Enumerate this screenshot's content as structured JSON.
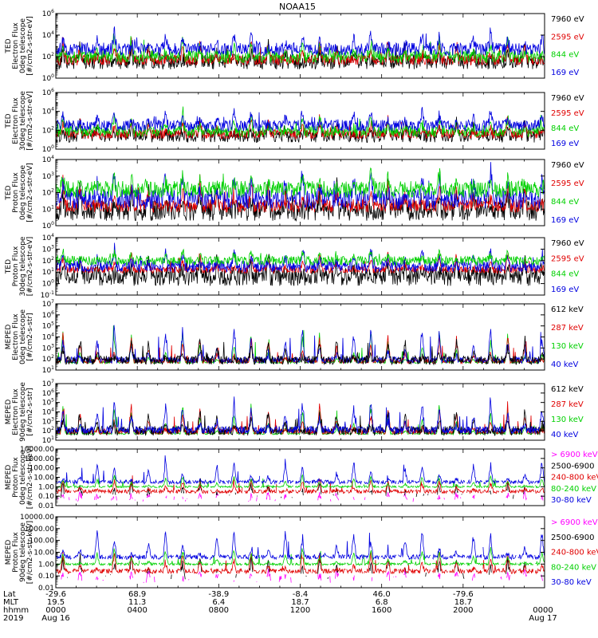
{
  "chart_data": {
    "type": "line",
    "title": "NOAA15",
    "x_range_hours": [
      0,
      24
    ],
    "x_axis_info": {
      "row_labels": [
        "Lat",
        "MLT",
        "hhmm",
        "2019"
      ],
      "ticks": [
        {
          "hour": 0,
          "lat": "-29.6",
          "mlt": "19.5",
          "hhmm": "0000",
          "date": "Aug 16"
        },
        {
          "hour": 4,
          "lat": "68.9",
          "mlt": "11.3",
          "hhmm": "0400",
          "date": ""
        },
        {
          "hour": 8,
          "lat": "-38.9",
          "mlt": "6.4",
          "hhmm": "0800",
          "date": ""
        },
        {
          "hour": 12,
          "lat": "-8.4",
          "mlt": "18.7",
          "hhmm": "1200",
          "date": ""
        },
        {
          "hour": 16,
          "lat": "46.0",
          "mlt": "6.8",
          "hhmm": "1600",
          "date": ""
        },
        {
          "hour": 20,
          "lat": "-79.6",
          "mlt": "18.7",
          "hhmm": "2000",
          "date": ""
        },
        {
          "hour": 24,
          "lat": "",
          "mlt": "",
          "hhmm": "0000",
          "date": "Aug 17"
        }
      ]
    },
    "panels": [
      {
        "ylabel": [
          "TED",
          "Electron Flux",
          "0deg telescope",
          "[#/cm2-s-str-eV]"
        ],
        "yscale": "log",
        "ylim_exp": [
          0,
          6
        ],
        "tick_exps": [
          0,
          2,
          4,
          6
        ],
        "tick_format": "pow",
        "series": [
          {
            "name": "7960 eV",
            "color": "#000000",
            "base_exp": 1.5,
            "noise": 0.7,
            "peak": 3.3,
            "gaps": false
          },
          {
            "name": "2595 eV",
            "color": "#e00000",
            "base_exp": 1.7,
            "noise": 0.5,
            "peak": 3.6,
            "gaps": false
          },
          {
            "name": "844 eV",
            "color": "#00d000",
            "base_exp": 2.0,
            "noise": 0.6,
            "peak": 3.8,
            "gaps": false
          },
          {
            "name": "169 eV",
            "color": "#0000e0",
            "base_exp": 2.7,
            "noise": 0.6,
            "peak": 4.6,
            "gaps": false
          }
        ]
      },
      {
        "ylabel": [
          "TED",
          "Electron Flux",
          "30deg telescope",
          "[#/cm2-s-str-eV]"
        ],
        "yscale": "log",
        "ylim_exp": [
          0,
          6
        ],
        "tick_exps": [
          0,
          2,
          4,
          6
        ],
        "tick_format": "pow",
        "series": [
          {
            "name": "7960 eV",
            "color": "#000000",
            "base_exp": 1.4,
            "noise": 0.7,
            "peak": 3.2,
            "gaps": false
          },
          {
            "name": "2595 eV",
            "color": "#e00000",
            "base_exp": 1.6,
            "noise": 0.5,
            "peak": 3.5,
            "gaps": false
          },
          {
            "name": "844 eV",
            "color": "#00d000",
            "base_exp": 1.9,
            "noise": 0.6,
            "peak": 3.7,
            "gaps": false
          },
          {
            "name": "169 eV",
            "color": "#0000e0",
            "base_exp": 2.5,
            "noise": 0.6,
            "peak": 4.5,
            "gaps": false
          }
        ]
      },
      {
        "ylabel": [
          "TED",
          "Proton Flux",
          "0deg telescope",
          "[#/cm2-s-str-eV]"
        ],
        "yscale": "log",
        "ylim_exp": [
          0,
          4
        ],
        "tick_exps": [
          0,
          1,
          2,
          3,
          4
        ],
        "tick_format": "pow",
        "series": [
          {
            "name": "7960 eV",
            "color": "#000000",
            "base_exp": 0.9,
            "noise": 0.6,
            "peak": 2.6,
            "gaps": false
          },
          {
            "name": "2595 eV",
            "color": "#e00000",
            "base_exp": 1.2,
            "noise": 0.4,
            "peak": 2.9,
            "gaps": false
          },
          {
            "name": "844 eV",
            "color": "#00d000",
            "base_exp": 2.2,
            "noise": 0.5,
            "peak": 3.2,
            "gaps": false
          },
          {
            "name": "169 eV",
            "color": "#0000e0",
            "base_exp": 1.6,
            "noise": 0.6,
            "peak": 3.7,
            "gaps": false
          }
        ]
      },
      {
        "ylabel": [
          "TED",
          "Proton Flux",
          "30deg telescope",
          "[#/cm2-s-str-eV]"
        ],
        "yscale": "log",
        "ylim_exp": [
          -1,
          4
        ],
        "tick_exps": [
          -1,
          0,
          1,
          2,
          3,
          4
        ],
        "tick_format": "pow",
        "series": [
          {
            "name": "7960 eV",
            "color": "#000000",
            "base_exp": 0.6,
            "noise": 0.8,
            "peak": 2.4,
            "gaps": false
          },
          {
            "name": "2595 eV",
            "color": "#e00000",
            "base_exp": 1.2,
            "noise": 0.3,
            "peak": 2.8,
            "gaps": false
          },
          {
            "name": "844 eV",
            "color": "#00d000",
            "base_exp": 2.0,
            "noise": 0.4,
            "peak": 3.0,
            "gaps": false
          },
          {
            "name": "169 eV",
            "color": "#0000e0",
            "base_exp": 1.5,
            "noise": 0.5,
            "peak": 3.3,
            "gaps": false
          }
        ]
      },
      {
        "ylabel": [
          "MEPED",
          "Electron Flux",
          "0deg telescope",
          "[#/cm2-s-str]"
        ],
        "yscale": "log",
        "ylim_exp": [
          1,
          7
        ],
        "tick_exps": [
          1,
          2,
          3,
          4,
          5,
          6,
          7
        ],
        "tick_format": "pow",
        "series": [
          {
            "name": "612 keV",
            "color": "#000000",
            "base_exp": 1.9,
            "noise": 0.4,
            "peak": 4.2,
            "gaps": false
          },
          {
            "name": "287 keV",
            "color": "#e00000",
            "base_exp": 1.8,
            "noise": 0.2,
            "peak": 4.5,
            "gaps": false
          },
          {
            "name": "130 keV",
            "color": "#00d000",
            "base_exp": 1.7,
            "noise": 0.1,
            "peak": 4.8,
            "gaps": false
          },
          {
            "name": "40 keV",
            "color": "#0000e0",
            "base_exp": 1.9,
            "noise": 0.3,
            "peak": 5.6,
            "gaps": false
          }
        ]
      },
      {
        "ylabel": [
          "MEPED",
          "Electron Flux",
          "90deg telescope",
          "[#/cm2-s-str]"
        ],
        "yscale": "log",
        "ylim_exp": [
          1,
          7
        ],
        "tick_exps": [
          1,
          2,
          3,
          4,
          5,
          6,
          7
        ],
        "tick_format": "pow",
        "series": [
          {
            "name": "612 keV",
            "color": "#000000",
            "base_exp": 2.0,
            "noise": 0.5,
            "peak": 4.4,
            "gaps": false
          },
          {
            "name": "287 keV",
            "color": "#e00000",
            "base_exp": 1.9,
            "noise": 0.3,
            "peak": 4.9,
            "gaps": false
          },
          {
            "name": "130 keV",
            "color": "#00d000",
            "base_exp": 1.7,
            "noise": 0.1,
            "peak": 5.2,
            "gaps": false
          },
          {
            "name": "40 keV",
            "color": "#0000e0",
            "base_exp": 2.1,
            "noise": 0.4,
            "peak": 5.8,
            "gaps": false
          }
        ]
      },
      {
        "ylabel": [
          "MEPED",
          "Proton Flux",
          "0deg telescope",
          "[#/cm2-s-str-keV]"
        ],
        "yscale": "log",
        "ylim_exp": [
          -2,
          4
        ],
        "tick_exps": [
          -2,
          -1,
          0,
          1,
          2,
          3,
          4
        ],
        "tick_labels": [
          "0.01",
          "0.10",
          "1.00",
          "10.00",
          "100.00",
          "1000.00",
          "10000.00"
        ],
        "tick_format": "dec",
        "series": [
          {
            "name": "> 6900 keV",
            "color": "#ff00ff",
            "base_exp": -1.3,
            "noise": 0.3,
            "peak": -0.6,
            "gaps": true
          },
          {
            "name": "2500-6900",
            "color": "#000000",
            "base_exp": -1.0,
            "noise": 0.3,
            "peak": 0.6,
            "gaps": true
          },
          {
            "name": "240-800 keV",
            "color": "#e00000",
            "base_exp": -0.5,
            "noise": 0.2,
            "peak": 1.0,
            "gaps": true
          },
          {
            "name": "80-240 keV",
            "color": "#00d000",
            "base_exp": 0.0,
            "noise": 0.1,
            "peak": 1.4,
            "gaps": true
          },
          {
            "name": "30-80 keV",
            "color": "#0000e0",
            "base_exp": 0.5,
            "noise": 0.2,
            "peak": 3.0,
            "gaps": true
          }
        ]
      },
      {
        "ylabel": [
          "MEPED",
          "Proton Flux",
          "90deg telescope",
          "[#/cm2-s-str-keV]"
        ],
        "yscale": "log",
        "ylim_exp": [
          -2,
          4
        ],
        "tick_exps": [
          -2,
          -1,
          0,
          1,
          2,
          3,
          4
        ],
        "tick_labels": [
          "0.01",
          "0.10",
          "1.00",
          "10.00",
          "100.00",
          "1000.00",
          "10000.00"
        ],
        "tick_format": "dec",
        "series": [
          {
            "name": "> 6900 keV",
            "color": "#ff00ff",
            "base_exp": -1.3,
            "noise": 0.3,
            "peak": -0.5,
            "gaps": true
          },
          {
            "name": "2500-6900",
            "color": "#000000",
            "base_exp": -1.0,
            "noise": 0.3,
            "peak": 0.8,
            "gaps": true
          },
          {
            "name": "240-800 keV",
            "color": "#e00000",
            "base_exp": -0.6,
            "noise": 0.2,
            "peak": 1.2,
            "gaps": true
          },
          {
            "name": "80-240 keV",
            "color": "#00d000",
            "base_exp": 0.0,
            "noise": 0.1,
            "peak": 1.6,
            "gaps": true
          },
          {
            "name": "30-80 keV",
            "color": "#0000e0",
            "base_exp": 0.6,
            "noise": 0.2,
            "peak": 3.2,
            "gaps": true
          }
        ]
      }
    ]
  }
}
